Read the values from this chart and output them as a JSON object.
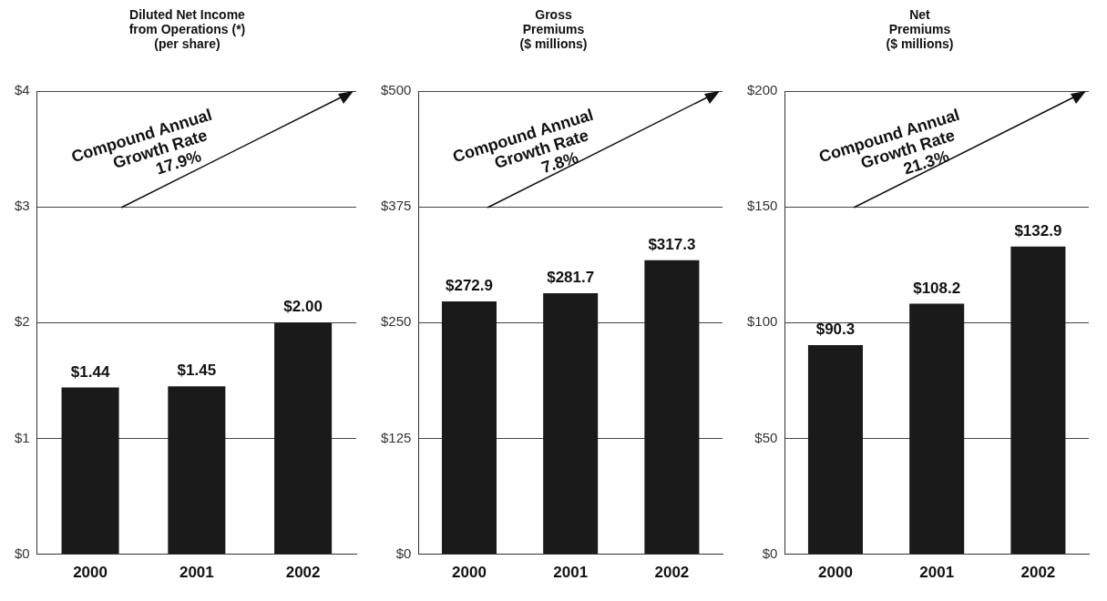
{
  "chart_data": [
    {
      "type": "bar",
      "title": "Diluted Net Income\nfrom Operations (*)\n(per share)",
      "categories": [
        "2000",
        "2001",
        "2002"
      ],
      "values": [
        1.44,
        1.45,
        2.0
      ],
      "color": "#1a1a1a",
      "value_labels": [
        "$1.44",
        "$1.45",
        "$2.00"
      ],
      "ylim": [
        0,
        4
      ],
      "yticks": [
        {
          "value": 0,
          "label": "$0"
        },
        {
          "value": 1,
          "label": "$1"
        },
        {
          "value": 2,
          "label": "$2"
        },
        {
          "value": 3,
          "label": "$3"
        },
        {
          "value": 4,
          "label": "$4"
        }
      ],
      "grid": "y",
      "annotations": [
        "Compound Annual\nGrowth Rate\n17.9%"
      ]
    },
    {
      "type": "bar",
      "title": "Gross\nPremiums\n($ millions)",
      "categories": [
        "2000",
        "2001",
        "2002"
      ],
      "values": [
        272.9,
        281.7,
        317.3
      ],
      "color": "#1a1a1a",
      "value_labels": [
        "$272.9",
        "$281.7",
        "$317.3"
      ],
      "ylim": [
        0,
        500
      ],
      "yticks": [
        {
          "value": 0,
          "label": "$0"
        },
        {
          "value": 125,
          "label": "$125"
        },
        {
          "value": 250,
          "label": "$250"
        },
        {
          "value": 375,
          "label": "$375"
        },
        {
          "value": 500,
          "label": "$500"
        }
      ],
      "grid": "y",
      "annotations": [
        "Compound Annual\nGrowth Rate\n7.8%"
      ]
    },
    {
      "type": "bar",
      "title": "Net\nPremiums\n($ millions)",
      "categories": [
        "2000",
        "2001",
        "2002"
      ],
      "values": [
        90.3,
        108.2,
        132.9
      ],
      "color": "#1a1a1a",
      "value_labels": [
        "$90.3",
        "$108.2",
        "$132.9"
      ],
      "ylim": [
        0,
        200
      ],
      "yticks": [
        {
          "value": 0,
          "label": "$0"
        },
        {
          "value": 50,
          "label": "$50"
        },
        {
          "value": 100,
          "label": "$100"
        },
        {
          "value": 150,
          "label": "$150"
        },
        {
          "value": 200,
          "label": "$200"
        }
      ],
      "grid": "y",
      "annotations": [
        "Compound Annual\nGrowth Rate\n21.3%"
      ]
    }
  ]
}
